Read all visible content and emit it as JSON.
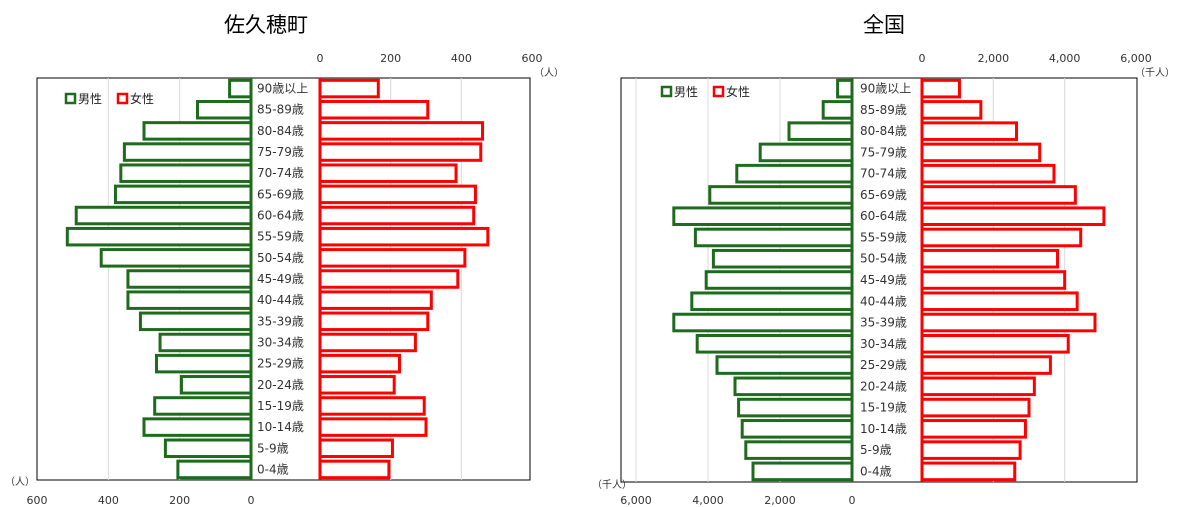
{
  "chart_data": [
    {
      "type": "bar",
      "orientation": "horizontal",
      "subtype": "population-pyramid",
      "title": "佐久穂町",
      "unit_label": "（人）",
      "categories": [
        "90歳以上",
        "85-89歳",
        "80-84歳",
        "75-79歳",
        "70-74歳",
        "65-69歳",
        "60-64歳",
        "55-59歳",
        "50-54歳",
        "45-49歳",
        "40-44歳",
        "35-39歳",
        "30-34歳",
        "25-29歳",
        "20-24歳",
        "15-19歳",
        "10-14歳",
        "5-9歳",
        "0-4歳"
      ],
      "series": [
        {
          "name": "男性",
          "color": "#1e6b1e",
          "values": [
            60,
            150,
            300,
            355,
            365,
            380,
            490,
            515,
            420,
            345,
            345,
            310,
            255,
            265,
            195,
            270,
            300,
            240,
            205
          ]
        },
        {
          "name": "女性",
          "color": "#ff0000",
          "values": [
            165,
            305,
            460,
            455,
            385,
            440,
            435,
            475,
            410,
            390,
            315,
            305,
            270,
            225,
            210,
            295,
            300,
            205,
            195
          ]
        }
      ],
      "male_axis": {
        "ticks": [
          "600",
          "400",
          "200",
          "0"
        ],
        "max": 600
      },
      "female_axis": {
        "ticks": [
          "0",
          "200",
          "400",
          "600"
        ],
        "max": 600
      },
      "legend": {
        "placement": "top-left"
      },
      "grid": true
    },
    {
      "type": "bar",
      "orientation": "horizontal",
      "subtype": "population-pyramid",
      "title": "全国",
      "unit_label": "（千人）",
      "categories": [
        "90歳以上",
        "85-89歳",
        "80-84歳",
        "75-79歳",
        "70-74歳",
        "65-69歳",
        "60-64歳",
        "55-59歳",
        "50-54歳",
        "45-49歳",
        "40-44歳",
        "35-39歳",
        "30-34歳",
        "25-29歳",
        "20-24歳",
        "15-19歳",
        "10-14歳",
        "5-9歳",
        "0-4歳"
      ],
      "series": [
        {
          "name": "男性",
          "color": "#1e6b1e",
          "values": [
            400,
            800,
            1750,
            2550,
            3200,
            3950,
            4950,
            4350,
            3850,
            4050,
            4450,
            4950,
            4300,
            3750,
            3250,
            3150,
            3050,
            2950,
            2750
          ]
        },
        {
          "name": "女性",
          "color": "#ff0000",
          "values": [
            1050,
            1650,
            2650,
            3300,
            3700,
            4300,
            5100,
            4450,
            3800,
            4000,
            4350,
            4850,
            4100,
            3600,
            3150,
            3000,
            2900,
            2750,
            2600
          ]
        }
      ],
      "male_axis": {
        "ticks": [
          "6,000",
          "4,000",
          "2,000",
          "0"
        ],
        "max": 6000
      },
      "female_axis": {
        "ticks": [
          "0",
          "2,000",
          "4,000",
          "6,000"
        ],
        "max": 6000
      },
      "legend": {
        "placement": "top-left"
      },
      "grid": true
    }
  ]
}
